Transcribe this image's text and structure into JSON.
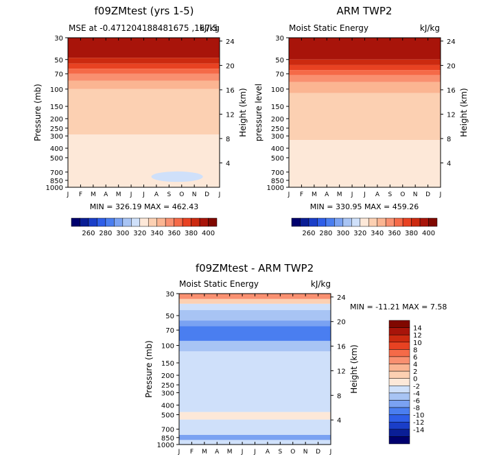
{
  "chart_data": [
    {
      "type": "contour",
      "title": "f09ZMtest (yrs 1-5)",
      "subtitle_left": "MSE at -0.471204188481675 ,167.5",
      "subtitle_right": "kJ/kg",
      "ylabel": "Pressure (mb)",
      "ylabel_right": "Height (km)",
      "stats": "MIN = 326.19   MAX = 462.43",
      "x_ticks": [
        "J",
        "F",
        "M",
        "A",
        "M",
        "J",
        "J",
        "A",
        "S",
        "O",
        "N",
        "D",
        "J"
      ],
      "y_ticks": [
        "30",
        "50",
        "70",
        "100",
        "150",
        "200",
        "250",
        "300",
        "400",
        "500",
        "700",
        "850",
        "1000"
      ],
      "height_ticks": [
        "24",
        "20",
        "16",
        "12",
        "8",
        "4"
      ],
      "bands": [
        {
          "top_p": 30,
          "bot_p": 48,
          "value": 405
        },
        {
          "top_p": 48,
          "bot_p": 55,
          "value": 390
        },
        {
          "top_p": 55,
          "bot_p": 62,
          "value": 380
        },
        {
          "top_p": 62,
          "bot_p": 70,
          "value": 370
        },
        {
          "top_p": 70,
          "bot_p": 82,
          "value": 360
        },
        {
          "top_p": 82,
          "bot_p": 100,
          "value": 350
        },
        {
          "top_p": 100,
          "bot_p": 290,
          "value": 340
        },
        {
          "top_p": 290,
          "bot_p": 1000,
          "value": 330
        }
      ],
      "anomaly": {
        "label": "low-level minimum",
        "value": 320
      }
    },
    {
      "type": "contour",
      "title": "ARM TWP2",
      "subtitle_left": "Moist Static Energy",
      "subtitle_right": "kJ/kg",
      "ylabel": "pressure level",
      "ylabel_right": "Height (km)",
      "stats": "MIN = 330.95   MAX = 459.26",
      "x_ticks": [
        "J",
        "F",
        "M",
        "A",
        "M",
        "J",
        "J",
        "A",
        "S",
        "O",
        "N",
        "D",
        "J"
      ],
      "y_ticks": [
        "30",
        "50",
        "70",
        "100",
        "150",
        "200",
        "250",
        "300",
        "400",
        "500",
        "700",
        "850",
        "1000"
      ],
      "height_ticks": [
        "24",
        "20",
        "16",
        "12",
        "8",
        "4"
      ],
      "bands": [
        {
          "top_p": 30,
          "bot_p": 50,
          "value": 405
        },
        {
          "top_p": 50,
          "bot_p": 57,
          "value": 390
        },
        {
          "top_p": 57,
          "bot_p": 64,
          "value": 380
        },
        {
          "top_p": 64,
          "bot_p": 72,
          "value": 370
        },
        {
          "top_p": 72,
          "bot_p": 85,
          "value": 360
        },
        {
          "top_p": 85,
          "bot_p": 110,
          "value": 350
        },
        {
          "top_p": 110,
          "bot_p": 330,
          "value": 340
        },
        {
          "top_p": 330,
          "bot_p": 1000,
          "value": 330
        }
      ]
    },
    {
      "type": "contour",
      "title": "f09ZMtest - ARM TWP2",
      "subtitle_left": "Moist Static Energy",
      "subtitle_right": "kJ/kg",
      "ylabel": "Pressure (mb)",
      "ylabel_right": "Height (km)",
      "stats": "MIN = -11.21  MAX =   7.58",
      "x_ticks": [
        "J",
        "F",
        "M",
        "A",
        "M",
        "J",
        "J",
        "A",
        "S",
        "O",
        "N",
        "D",
        "J"
      ],
      "y_ticks": [
        "30",
        "50",
        "70",
        "100",
        "150",
        "200",
        "250",
        "300",
        "400",
        "500",
        "700",
        "850",
        "1000"
      ],
      "height_ticks": [
        "24",
        "20",
        "16",
        "12",
        "8",
        "4"
      ],
      "bands": [
        {
          "top_p": 30,
          "bot_p": 34,
          "value": 6
        },
        {
          "top_p": 34,
          "bot_p": 38,
          "value": 2
        },
        {
          "top_p": 38,
          "bot_p": 44,
          "value": -2
        },
        {
          "top_p": 44,
          "bot_p": 56,
          "value": -4
        },
        {
          "top_p": 56,
          "bot_p": 64,
          "value": -6
        },
        {
          "top_p": 64,
          "bot_p": 90,
          "value": -8
        },
        {
          "top_p": 90,
          "bot_p": 115,
          "value": -4
        },
        {
          "top_p": 115,
          "bot_p": 470,
          "value": -2
        },
        {
          "top_p": 470,
          "bot_p": 560,
          "value": 1
        },
        {
          "top_p": 560,
          "bot_p": 800,
          "value": -2
        },
        {
          "top_p": 800,
          "bot_p": 900,
          "value": -6
        },
        {
          "top_p": 900,
          "bot_p": 1000,
          "value": -2
        }
      ]
    }
  ],
  "colorbar_abs": {
    "levels": [
      250,
      260,
      270,
      280,
      290,
      300,
      310,
      320,
      330,
      340,
      350,
      360,
      370,
      380,
      390,
      400,
      410
    ],
    "labels": [
      "260",
      "280",
      "300",
      "320",
      "340",
      "360",
      "380",
      "400"
    ],
    "colors": [
      "#00006e",
      "#0a1e96",
      "#1a3ec8",
      "#2e5ee8",
      "#4a7ef0",
      "#7aa2f2",
      "#a8c4f4",
      "#cfe0fa",
      "#fde8d8",
      "#fcd0b2",
      "#fbb592",
      "#f99070",
      "#f56a48",
      "#e84222",
      "#cc2a10",
      "#a8140a",
      "#800800"
    ]
  },
  "colorbar_diff": {
    "levels": [
      -16,
      -14,
      -12,
      -10,
      -8,
      -6,
      -4,
      -2,
      0,
      2,
      4,
      6,
      8,
      10,
      12,
      14,
      16
    ],
    "labels": [
      "14",
      "12",
      "10",
      "8",
      "6",
      "4",
      "2",
      "0",
      "-2",
      "-4",
      "-6",
      "-8",
      "-10",
      "-12",
      "-14"
    ],
    "colors": [
      "#00006e",
      "#0a1e96",
      "#1a3ec8",
      "#2e5ee8",
      "#4a7ef0",
      "#7aa2f2",
      "#a8c4f4",
      "#cfe0fa",
      "#fde8d8",
      "#fcd0b2",
      "#fbb592",
      "#f99070",
      "#f56a48",
      "#e84222",
      "#cc2a10",
      "#a8140a",
      "#800800"
    ]
  },
  "colors": {
    "axis": "#000000",
    "background": "#ffffff"
  }
}
